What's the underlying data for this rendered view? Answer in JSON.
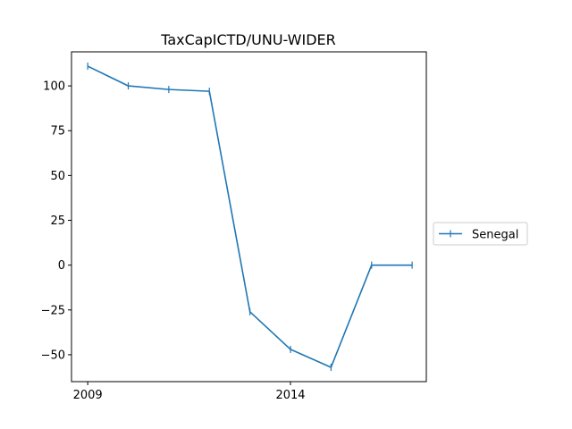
{
  "chart_data": {
    "type": "line",
    "title": "TaxCapICTD/UNU-WIDER",
    "xlabel": "",
    "ylabel": "",
    "x": [
      2009,
      2010,
      2011,
      2012,
      2013,
      2014,
      2015,
      2016,
      2017
    ],
    "series": [
      {
        "name": "Senegal",
        "color": "#1f77b4",
        "marker": "vertical-tick",
        "values": [
          111,
          100,
          98,
          97,
          -26,
          -47,
          -57,
          0,
          0
        ]
      }
    ],
    "xlim": [
      2008.6,
      2017.35
    ],
    "ylim": [
      -65,
      119
    ],
    "xticks": [
      2009,
      2014
    ],
    "xtick_labels": [
      "2009",
      "2014"
    ],
    "yticks": [
      -50,
      -25,
      0,
      25,
      50,
      75,
      100
    ],
    "ytick_labels": [
      "−50",
      "−25",
      "0",
      "25",
      "50",
      "75",
      "100"
    ],
    "grid": false,
    "legend_position": "outside-right"
  }
}
